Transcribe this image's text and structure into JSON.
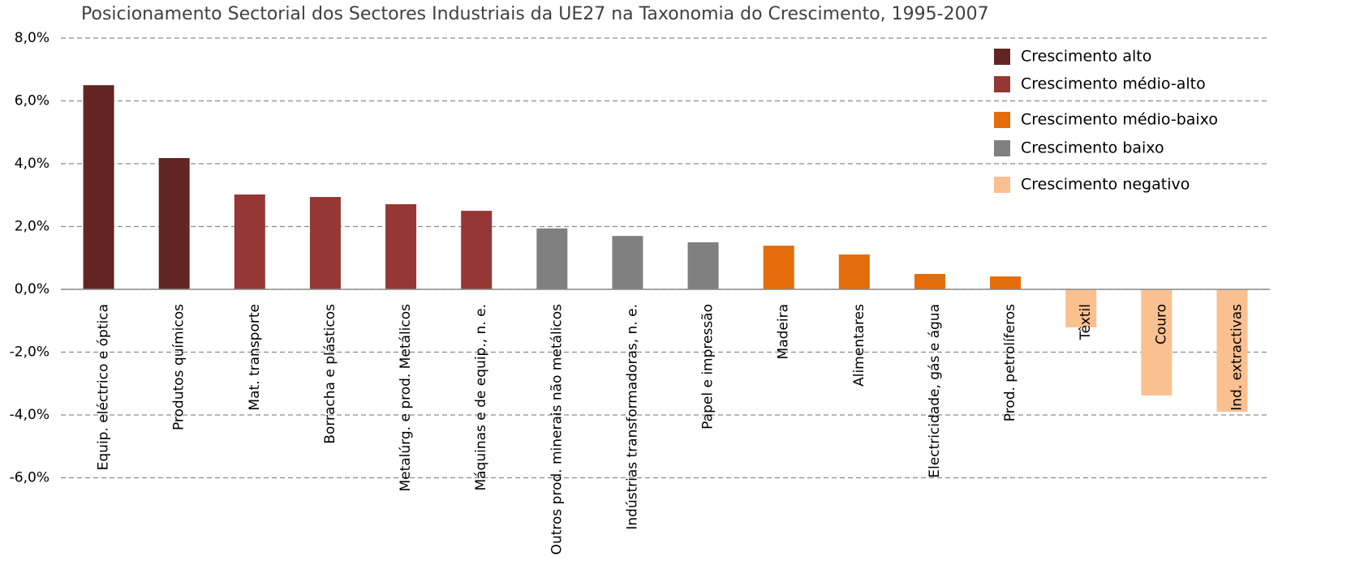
{
  "chart_data": {
    "type": "bar",
    "title": "Posicionamento Sectorial dos Sectores Industriais da UE27 na Taxonomia do Crescimento, 1995-2007",
    "categories": [
      "Equip. eléctrico e óptica",
      "Produtos químicos",
      "Mat. transporte",
      "Borracha e plásticos",
      "Metalúrg. e prod. Metálicos",
      "Máquinas e de equip., n. e.",
      "Outros prod. minerais não metálicos",
      "Indústrias transformadoras, n. e.",
      "Papel e impressão",
      "Madeira",
      "Alimentares",
      "Electricidade, gás e água",
      "Prod. petrolíferos",
      "Têxtil",
      "Couro",
      "Ind. extractivas"
    ],
    "series": [
      {
        "name": "Crescimento alto",
        "color": "#632523",
        "values": [
          6.5,
          4.18,
          null,
          null,
          null,
          null,
          null,
          null,
          null,
          null,
          null,
          null,
          null,
          null,
          null,
          null
        ]
      },
      {
        "name": "Crescimento médio-alto",
        "color": "#953735",
        "values": [
          null,
          null,
          3.02,
          2.94,
          2.71,
          2.5,
          null,
          null,
          null,
          null,
          null,
          null,
          null,
          null,
          null,
          null
        ]
      },
      {
        "name": "Crescimento médio-baixo",
        "color": "#e46c0a",
        "values": [
          null,
          null,
          null,
          null,
          null,
          null,
          null,
          null,
          null,
          1.39,
          1.11,
          0.49,
          0.41,
          null,
          null,
          null
        ]
      },
      {
        "name": "Crescimento baixo",
        "color": "#808080",
        "values": [
          null,
          null,
          null,
          null,
          null,
          null,
          1.94,
          1.7,
          1.5,
          null,
          null,
          null,
          null,
          null,
          null,
          null
        ]
      },
      {
        "name": "Crescimento negativo",
        "color": "#fac090",
        "values": [
          null,
          null,
          null,
          null,
          null,
          null,
          null,
          null,
          null,
          null,
          null,
          null,
          null,
          -1.21,
          -3.38,
          -3.9
        ]
      }
    ],
    "ylim": [
      -6,
      8
    ],
    "yticks": [
      {
        "value": -6,
        "label": "-6,0%"
      },
      {
        "value": -4,
        "label": "-4,0%"
      },
      {
        "value": -2,
        "label": "-2,0%"
      },
      {
        "value": 0,
        "label": "0,0%"
      },
      {
        "value": 2,
        "label": "2,0%"
      },
      {
        "value": 4,
        "label": "4,0%"
      },
      {
        "value": 6,
        "label": "6,0%"
      },
      {
        "value": 8,
        "label": "8,0%"
      }
    ],
    "grid": true,
    "legend": "upper right"
  }
}
